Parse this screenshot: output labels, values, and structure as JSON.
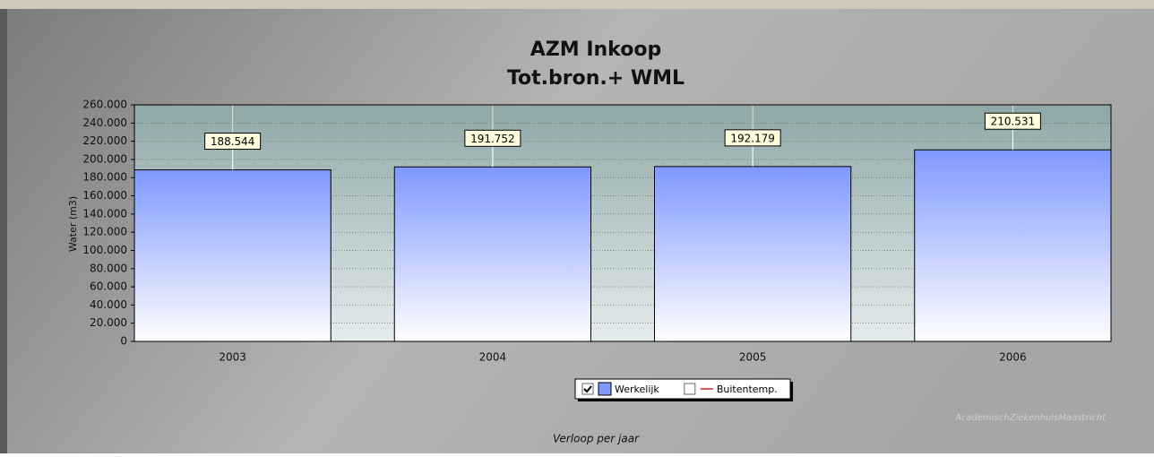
{
  "chart_data": {
    "type": "bar",
    "title": "AZM Inkoop",
    "subtitle": "Tot.bron.+ WML",
    "y_label": "Water (m3)",
    "x_label": "Verloop per jaar",
    "annotation": "AcademischZiekenhuisMaastricht",
    "categories": [
      "2003",
      "2004",
      "2005",
      "2006"
    ],
    "series": [
      {
        "name": "Werkelijk",
        "color": "#7f98ff",
        "values": [
          188544,
          191752,
          192179,
          210531
        ],
        "value_labels": [
          "188.544",
          "191.752",
          "192.179",
          "210.531"
        ],
        "checked": true
      },
      {
        "name": "Buitentemp.",
        "color": "#d02020",
        "values": [
          null,
          null,
          null,
          null
        ],
        "checked": false
      }
    ],
    "ylim": [
      0,
      260000
    ],
    "yticks": [
      0,
      {
        "value": 20000,
        "label": "20.000"
      },
      {
        "value": 40000,
        "label": "40.000"
      },
      {
        "value": 60000,
        "label": "60.000"
      },
      {
        "value": 80000,
        "label": "80.000"
      },
      {
        "value": 100000,
        "label": "100.000"
      },
      {
        "value": 120000,
        "label": "120.000"
      },
      {
        "value": 140000,
        "label": "140.000"
      },
      {
        "value": 160000,
        "label": "160.000"
      },
      {
        "value": 180000,
        "label": "180.000"
      },
      {
        "value": 200000,
        "label": "200.000"
      },
      {
        "value": 220000,
        "label": "220.000"
      },
      {
        "value": 240000,
        "label": "240.000"
      },
      {
        "value": 260000,
        "label": "260.000"
      }
    ],
    "grid": true
  }
}
